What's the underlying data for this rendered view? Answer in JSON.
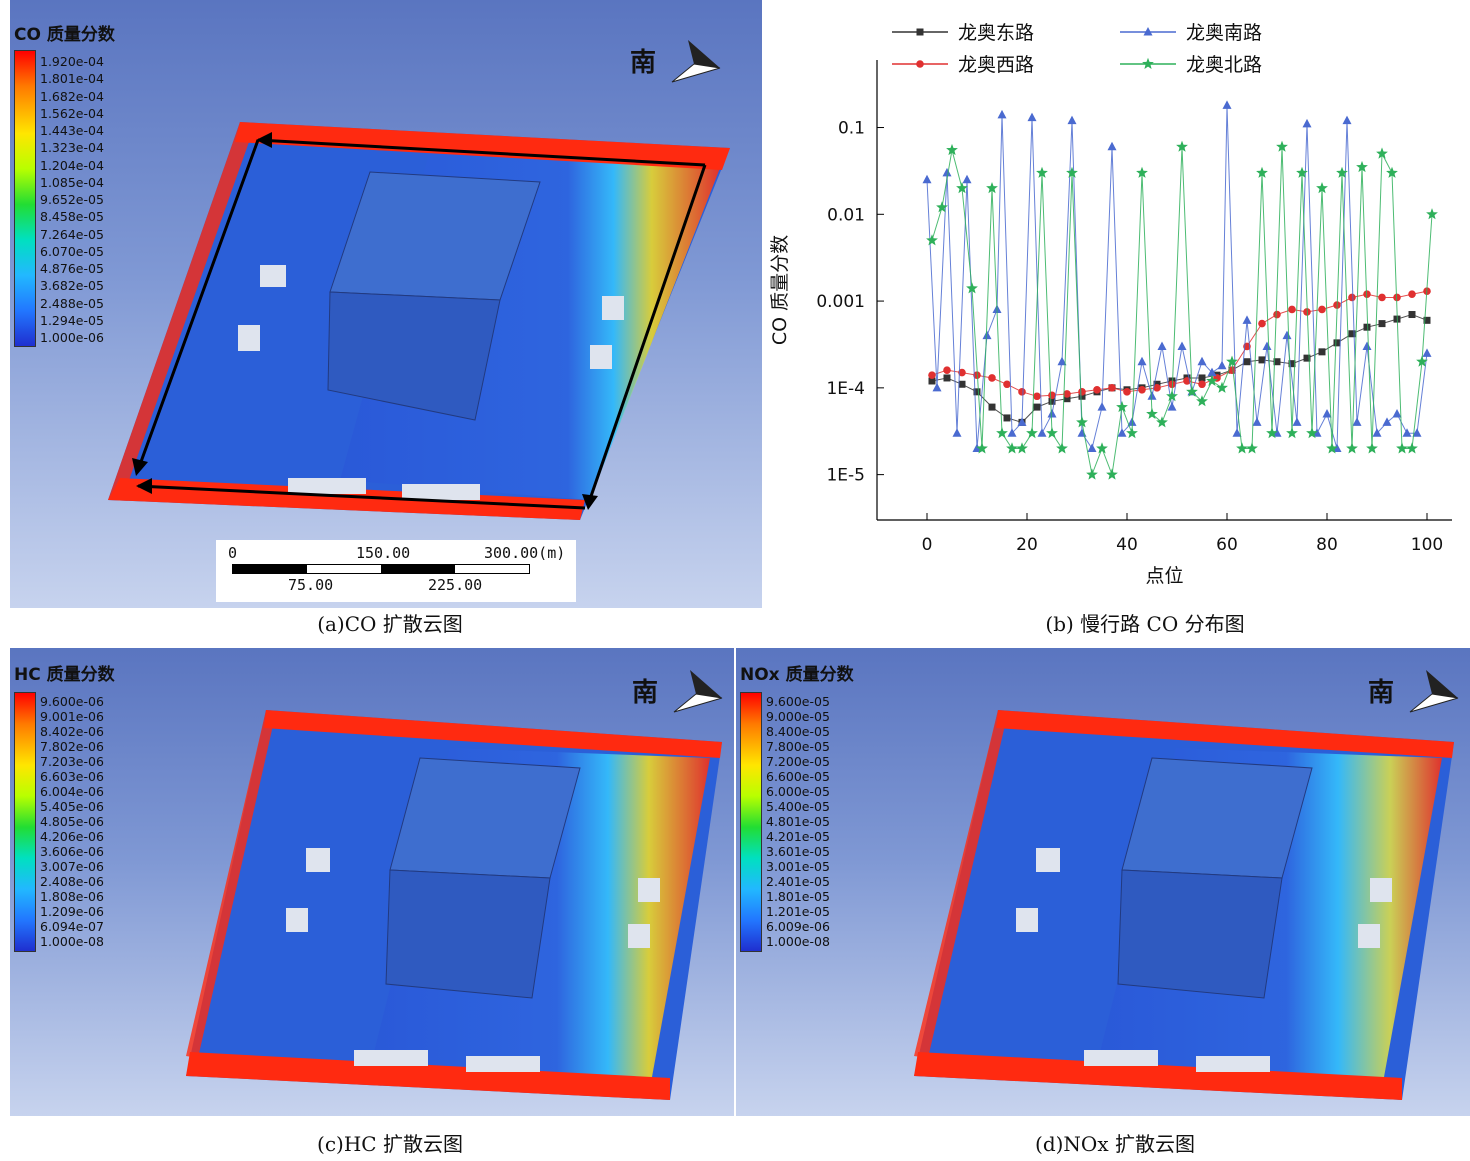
{
  "panels": {
    "a": {
      "legend_title": "CO 质量分数",
      "ticks": [
        "1.920e-04",
        "1.801e-04",
        "1.682e-04",
        "1.562e-04",
        "1.443e-04",
        "1.323e-04",
        "1.204e-04",
        "1.085e-04",
        "9.652e-05",
        "8.458e-05",
        "7.264e-05",
        "6.070e-05",
        "4.876e-05",
        "3.682e-05",
        "2.488e-05",
        "1.294e-05",
        "1.000e-06"
      ],
      "compass": "南",
      "caption": "(a)CO 扩散云图",
      "scale": {
        "t0": "0",
        "t150": "150.00",
        "t300": "300.00(m)",
        "t75": "75.00",
        "t225": "225.00"
      }
    },
    "b": {
      "caption": "(b) 慢行路 CO 分布图"
    },
    "c": {
      "legend_title": "HC 质量分数",
      "ticks": [
        "9.600e-06",
        "9.001e-06",
        "8.402e-06",
        "7.802e-06",
        "7.203e-06",
        "6.603e-06",
        "6.004e-06",
        "5.405e-06",
        "4.805e-06",
        "4.206e-06",
        "3.606e-06",
        "3.007e-06",
        "2.408e-06",
        "1.808e-06",
        "1.209e-06",
        "6.094e-07",
        "1.000e-08"
      ],
      "compass": "南",
      "caption": "(c)HC 扩散云图"
    },
    "d": {
      "legend_title": "NOx 质量分数",
      "ticks": [
        "9.600e-05",
        "9.000e-05",
        "8.400e-05",
        "7.800e-05",
        "7.200e-05",
        "6.600e-05",
        "6.000e-05",
        "5.400e-05",
        "4.801e-05",
        "4.201e-05",
        "3.601e-05",
        "3.001e-05",
        "2.401e-05",
        "1.801e-05",
        "1.201e-05",
        "6.009e-06",
        "1.000e-08"
      ],
      "compass": "南",
      "caption": "(d)NOx 扩散云图"
    }
  },
  "chart_data": {
    "type": "line",
    "xlabel": "点位",
    "ylabel": "CO 质量分数",
    "yscale": "log",
    "xlim": [
      -10,
      105
    ],
    "ylim": [
      3e-06,
      0.6
    ],
    "x_ticks": [
      "0",
      "20",
      "40",
      "60",
      "80",
      "100"
    ],
    "y_ticks": [
      {
        "value": 0.1,
        "label": "0.1"
      },
      {
        "value": 0.01,
        "label": "0.01"
      },
      {
        "value": 0.001,
        "label": "0.001"
      },
      {
        "value": 0.0001,
        "label": "1E-4"
      },
      {
        "value": 1e-05,
        "label": "1E-5"
      }
    ],
    "legend_position": "top",
    "series": [
      {
        "name": "龙奥东路",
        "color": "#333333",
        "marker": "square",
        "x": [
          1,
          4,
          7,
          10,
          13,
          16,
          19,
          22,
          25,
          28,
          31,
          34,
          37,
          40,
          43,
          46,
          49,
          52,
          55,
          58,
          61,
          64,
          67,
          70,
          73,
          76,
          79,
          82,
          85,
          88,
          91,
          94,
          97,
          100
        ],
        "y": [
          0.00012,
          0.00013,
          0.00011,
          9e-05,
          6e-05,
          4.5e-05,
          4e-05,
          6e-05,
          7e-05,
          7.5e-05,
          8e-05,
          9e-05,
          0.0001,
          9.5e-05,
          0.0001,
          0.00011,
          0.00012,
          0.00013,
          0.00013,
          0.00014,
          0.00016,
          0.0002,
          0.00021,
          0.0002,
          0.00019,
          0.00022,
          0.00026,
          0.00033,
          0.00042,
          0.0005,
          0.00055,
          0.00062,
          0.0007,
          0.0006
        ]
      },
      {
        "name": "龙奥西路",
        "color": "#e03030",
        "marker": "circle",
        "x": [
          1,
          4,
          7,
          10,
          13,
          16,
          19,
          22,
          25,
          28,
          31,
          34,
          37,
          40,
          43,
          46,
          49,
          52,
          55,
          58,
          61,
          64,
          67,
          70,
          73,
          76,
          79,
          82,
          85,
          88,
          91,
          94,
          97,
          100
        ],
        "y": [
          0.00014,
          0.00016,
          0.00015,
          0.00014,
          0.00013,
          0.00011,
          9e-05,
          8e-05,
          8.2e-05,
          8.5e-05,
          9e-05,
          9.5e-05,
          0.0001,
          9e-05,
          9.5e-05,
          0.0001,
          0.00011,
          0.00012,
          0.00011,
          0.00013,
          0.00016,
          0.0003,
          0.00055,
          0.0007,
          0.0008,
          0.00075,
          0.0008,
          0.0009,
          0.0011,
          0.0012,
          0.0011,
          0.0011,
          0.0012,
          0.0013
        ]
      },
      {
        "name": "龙奥南路",
        "color": "#4a6ad0",
        "marker": "triangle",
        "x": [
          0,
          2,
          4,
          6,
          8,
          10,
          12,
          14,
          15,
          17,
          19,
          21,
          23,
          25,
          27,
          29,
          31,
          33,
          35,
          37,
          39,
          41,
          43,
          45,
          47,
          49,
          51,
          53,
          55,
          57,
          59,
          60,
          62,
          64,
          66,
          68,
          70,
          72,
          74,
          76,
          78,
          80,
          82,
          84,
          86,
          88,
          90,
          92,
          94,
          96,
          98,
          100
        ],
        "y": [
          0.025,
          0.0001,
          0.03,
          3e-05,
          0.025,
          2e-05,
          0.0004,
          0.0008,
          0.14,
          3e-05,
          4e-05,
          0.13,
          3e-05,
          5e-05,
          0.0002,
          0.12,
          3e-05,
          2e-05,
          6e-05,
          0.06,
          3e-05,
          4e-05,
          0.0002,
          8e-05,
          0.0003,
          6e-05,
          0.0003,
          9e-05,
          0.0002,
          0.00015,
          0.00018,
          0.18,
          3e-05,
          0.0006,
          4e-05,
          0.0003,
          3e-05,
          0.0004,
          4e-05,
          0.11,
          3e-05,
          5e-05,
          2e-05,
          0.12,
          4e-05,
          0.0003,
          3e-05,
          4e-05,
          5e-05,
          3e-05,
          3e-05,
          0.00025
        ]
      },
      {
        "name": "龙奥北路",
        "color": "#2eb05a",
        "marker": "star",
        "x": [
          1,
          3,
          5,
          7,
          9,
          11,
          13,
          15,
          17,
          19,
          21,
          23,
          25,
          27,
          29,
          31,
          33,
          35,
          37,
          39,
          41,
          43,
          45,
          47,
          49,
          51,
          53,
          55,
          57,
          59,
          61,
          63,
          65,
          67,
          69,
          71,
          73,
          75,
          77,
          79,
          81,
          83,
          85,
          87,
          89,
          91,
          93,
          95,
          97,
          99,
          101
        ],
        "y": [
          0.005,
          0.012,
          0.055,
          0.02,
          0.0014,
          2e-05,
          0.02,
          3e-05,
          2e-05,
          2e-05,
          3e-05,
          0.03,
          3e-05,
          2e-05,
          0.03,
          4e-05,
          1e-05,
          2e-05,
          1e-05,
          6e-05,
          3e-05,
          0.03,
          5e-05,
          4e-05,
          8e-05,
          0.06,
          9e-05,
          7e-05,
          0.00012,
          0.0001,
          0.0002,
          2e-05,
          2e-05,
          0.03,
          3e-05,
          0.06,
          3e-05,
          0.03,
          3e-05,
          0.02,
          2e-05,
          0.03,
          2e-05,
          0.035,
          2e-05,
          0.05,
          0.03,
          2e-05,
          2e-05,
          0.0002,
          0.01
        ]
      }
    ]
  }
}
